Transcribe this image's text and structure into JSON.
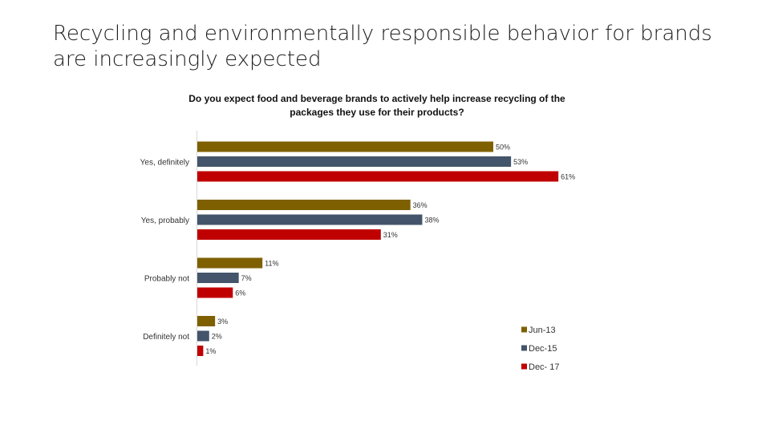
{
  "slide": {
    "title_line1": "Recycling and environmentally responsible behavior for brands",
    "title_line2": "are increasingly expected"
  },
  "chart_data": {
    "type": "bar",
    "orientation": "horizontal",
    "title_line1": "Do you expect food and beverage brands to actively help increase recycling of the",
    "title_line2": "packages they use for their products?",
    "categories": [
      "Yes, definitely",
      "Yes, probably",
      "Probably not",
      "Definitely not"
    ],
    "series": [
      {
        "name": "Jun-13",
        "color": "#7f6000",
        "values": [
          50,
          36,
          11,
          3
        ]
      },
      {
        "name": "Dec-15",
        "color": "#44546a",
        "values": [
          53,
          38,
          7,
          2
        ]
      },
      {
        "name": "Dec- 17",
        "color": "#c00000",
        "values": [
          61,
          31,
          6,
          1
        ]
      }
    ],
    "value_suffix": "%",
    "xlim": [
      0,
      65
    ],
    "grid": false,
    "legend_position": "bottom-right"
  }
}
